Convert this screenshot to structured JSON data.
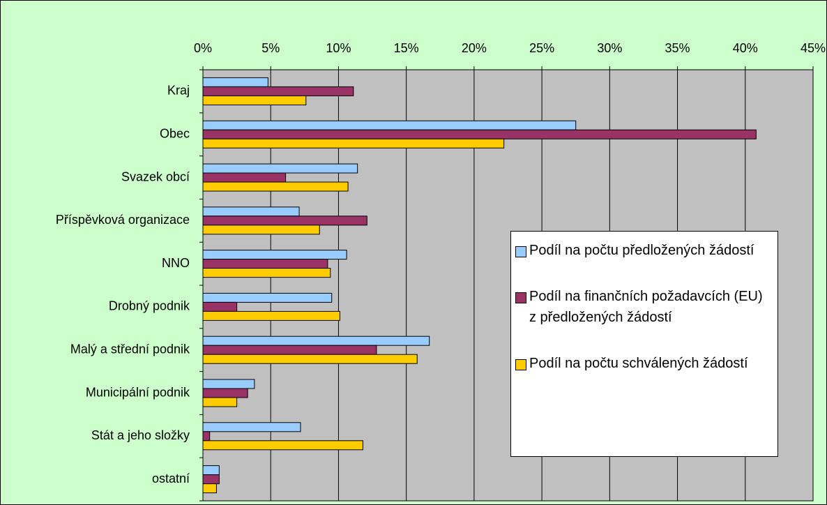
{
  "chart_data": {
    "type": "barh",
    "categories": [
      "Kraj",
      "Obec",
      "Svazek obcí",
      "Příspěvková organizace",
      "NNO",
      "Drobný podnik",
      "Malý a střední podnik",
      "Municipální podnik",
      "Stát a jeho složky",
      "ostatní"
    ],
    "series": [
      {
        "name": "Podíl na počtu předložených žádostí",
        "color": "#99ccff",
        "values": [
          4.8,
          27.5,
          11.4,
          7.1,
          10.6,
          9.5,
          16.7,
          3.8,
          7.2,
          1.2
        ]
      },
      {
        "name": "Podíl na finančních požadavcích (EU) z předložených žádostí",
        "color": "#993366",
        "values": [
          11.1,
          40.8,
          6.1,
          12.1,
          9.2,
          2.5,
          12.8,
          3.3,
          0.5,
          1.2
        ]
      },
      {
        "name": "Podíl na počtu schválených žádostí",
        "color": "#ffcc00",
        "values": [
          7.6,
          22.2,
          10.7,
          8.6,
          9.4,
          10.1,
          15.8,
          2.5,
          11.8,
          1.0
        ]
      }
    ],
    "xlim": [
      0,
      45
    ],
    "xticks": [
      {
        "value": 0,
        "label": "0%"
      },
      {
        "value": 5,
        "label": "5%"
      },
      {
        "value": 10,
        "label": "10%"
      },
      {
        "value": 15,
        "label": "15%"
      },
      {
        "value": 20,
        "label": "20%"
      },
      {
        "value": 25,
        "label": "25%"
      },
      {
        "value": 30,
        "label": "30%"
      },
      {
        "value": 35,
        "label": "35%"
      },
      {
        "value": 40,
        "label": "40%"
      },
      {
        "value": 45,
        "label": "45%"
      }
    ],
    "grid": true,
    "legend": "right"
  }
}
